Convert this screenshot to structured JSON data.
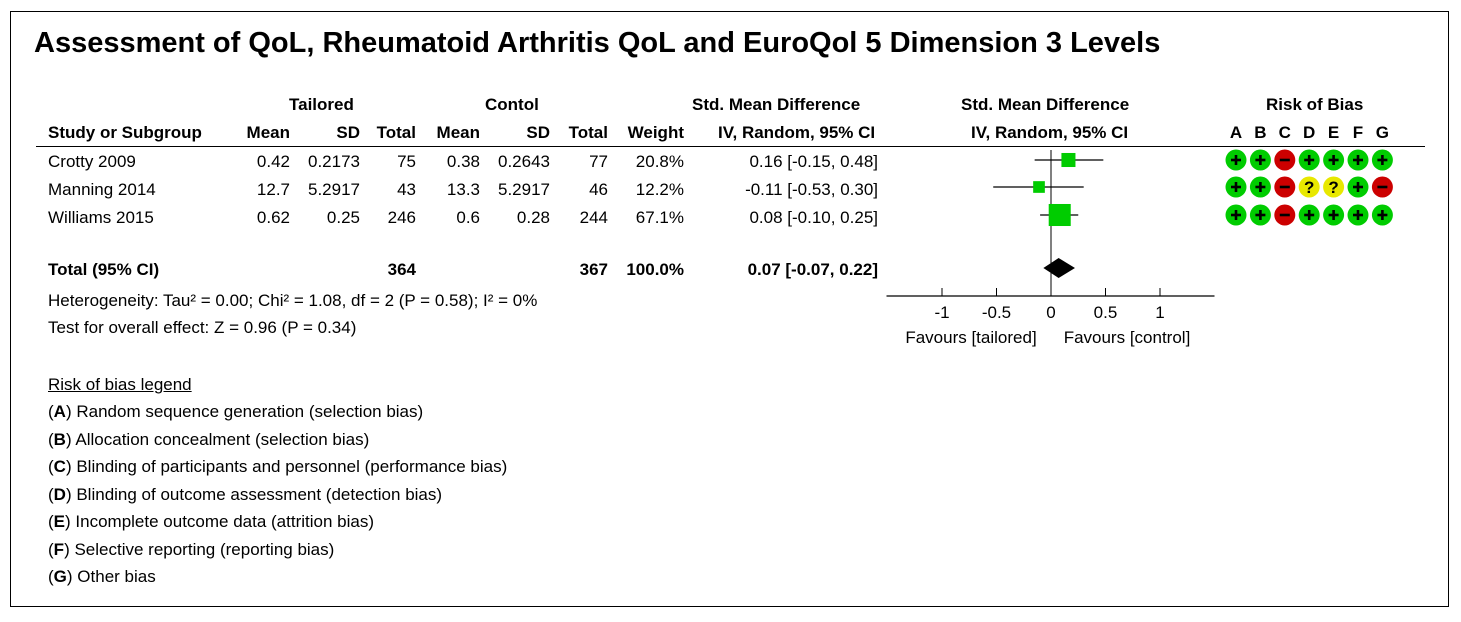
{
  "title": "Assessment of QoL, Rheumatoid Arthritis QoL and EuroQol 5 Dimension 3 Levels",
  "headers": {
    "tailored": "Tailored",
    "control": "Contol",
    "smd": "Std. Mean Difference",
    "smd_plot": "Std. Mean Difference",
    "rob": "Risk of Bias",
    "study": "Study or Subgroup",
    "mean": "Mean",
    "sd": "SD",
    "total": "Total",
    "weight": "Weight",
    "method": "IV, Random, 95% CI",
    "method_plot": "IV, Random, 95% CI",
    "rob_letters": [
      "A",
      "B",
      "C",
      "D",
      "E",
      "F",
      "G"
    ]
  },
  "chart_data": {
    "type": "forest",
    "xlim": [
      -1.5,
      1.5
    ],
    "xticks": [
      "-1",
      "-0.5",
      "0",
      "0.5",
      "1"
    ],
    "xtick_values": [
      -1,
      -0.5,
      0,
      0.5,
      1
    ],
    "favours_left": "Favours [tailored]",
    "favours_right": "Favours [control]",
    "studies": [
      {
        "name": "Crotty 2009",
        "t_mean": "0.42",
        "t_sd": "0.2173",
        "t_total": "75",
        "c_mean": "0.38",
        "c_sd": "0.2643",
        "c_total": "77",
        "weight": "20.8%",
        "ci_text": "0.16 [-0.15, 0.48]",
        "est": 0.16,
        "lo": -0.15,
        "hi": 0.48,
        "w": 20.8,
        "rob": [
          "+",
          "+",
          "-",
          "+",
          "+",
          "+",
          "+"
        ]
      },
      {
        "name": "Manning 2014",
        "t_mean": "12.7",
        "t_sd": "5.2917",
        "t_total": "43",
        "c_mean": "13.3",
        "c_sd": "5.2917",
        "c_total": "46",
        "weight": "12.2%",
        "ci_text": "-0.11 [-0.53, 0.30]",
        "est": -0.11,
        "lo": -0.53,
        "hi": 0.3,
        "w": 12.2,
        "rob": [
          "+",
          "+",
          "-",
          "?",
          "?",
          "+",
          "-"
        ]
      },
      {
        "name": "Williams 2015",
        "t_mean": "0.62",
        "t_sd": "0.25",
        "t_total": "246",
        "c_mean": "0.6",
        "c_sd": "0.28",
        "c_total": "244",
        "weight": "67.1%",
        "ci_text": "0.08 [-0.10, 0.25]",
        "est": 0.08,
        "lo": -0.1,
        "hi": 0.25,
        "w": 67.1,
        "rob": [
          "+",
          "+",
          "-",
          "+",
          "+",
          "+",
          "+"
        ]
      }
    ],
    "total": {
      "label": "Total (95% CI)",
      "t_total": "364",
      "c_total": "367",
      "weight": "100.0%",
      "ci_text": "0.07 [-0.07, 0.22]",
      "est": 0.07,
      "lo": -0.07,
      "hi": 0.22
    },
    "heterogeneity": "Heterogeneity: Tau² = 0.00; Chi² = 1.08, df = 2 (P = 0.58); I² = 0%",
    "overall_effect": "Test for overall effect: Z = 0.96 (P = 0.34)"
  },
  "rob_legend": {
    "title": "Risk of bias legend",
    "items": [
      {
        "letter": "A",
        "text": "Random sequence generation (selection bias)"
      },
      {
        "letter": "B",
        "text": "Allocation concealment (selection bias)"
      },
      {
        "letter": "C",
        "text": "Blinding of participants and personnel (performance bias)"
      },
      {
        "letter": "D",
        "text": "Blinding of outcome assessment (detection bias)"
      },
      {
        "letter": "E",
        "text": "Incomplete outcome data (attrition bias)"
      },
      {
        "letter": "F",
        "text": "Selective reporting (reporting bias)"
      },
      {
        "letter": "G",
        "text": "Other bias"
      }
    ]
  },
  "colors": {
    "low": "#00cc00",
    "unclear": "#e8e800",
    "high": "#cc0000",
    "marker": "#00cc00",
    "diamond": "#000000"
  }
}
